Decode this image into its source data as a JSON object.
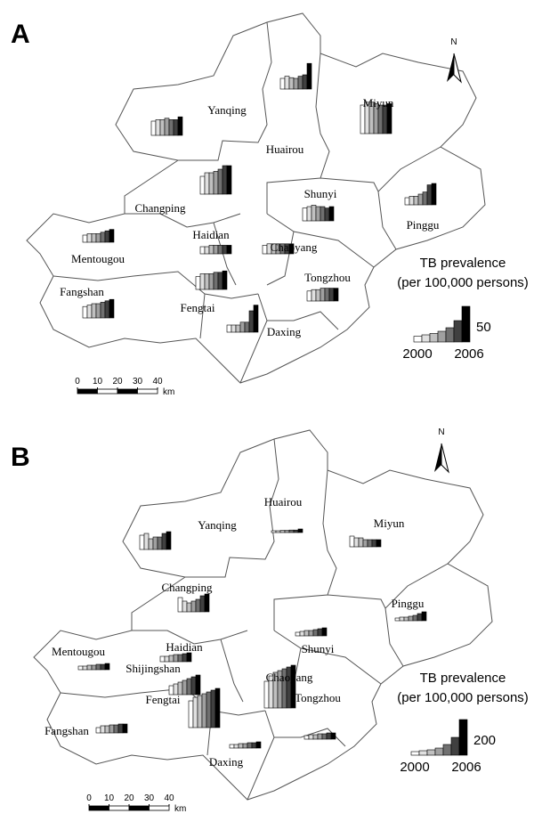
{
  "colors": [
    "#ffffff",
    "#e0e0e0",
    "#c0c0c0",
    "#a0a0a0",
    "#707070",
    "#404040",
    "#000000"
  ],
  "panels": [
    {
      "label": "A",
      "north": "N",
      "districts": [
        {
          "name": "Yanqing",
          "values": [
            20,
            22,
            22,
            24,
            22,
            22,
            26
          ]
        },
        {
          "name": "Huairou",
          "values": [
            15,
            18,
            16,
            15,
            18,
            20,
            36
          ]
        },
        {
          "name": "Miyun",
          "values": [
            40,
            44,
            44,
            42,
            40,
            40,
            42
          ]
        },
        {
          "name": "Changping",
          "values": [
            25,
            30,
            30,
            32,
            35,
            40,
            40
          ]
        },
        {
          "name": "Shunyi",
          "values": [
            18,
            20,
            22,
            20,
            20,
            18,
            20
          ]
        },
        {
          "name": "Pinggu",
          "values": [
            10,
            12,
            12,
            15,
            18,
            28,
            30
          ]
        },
        {
          "name": "Mentougou",
          "values": [
            10,
            12,
            12,
            12,
            14,
            16,
            18
          ]
        },
        {
          "name": "Haidian",
          "values": [
            10,
            10,
            12,
            12,
            12,
            12,
            12
          ]
        },
        {
          "name": "Chaoyang",
          "values": [
            12,
            14,
            14,
            14,
            14,
            14,
            14
          ]
        },
        {
          "name": "Tongzhou",
          "values": [
            14,
            16,
            16,
            18,
            18,
            18,
            18
          ]
        },
        {
          "name": "Fangshan",
          "values": [
            16,
            18,
            20,
            20,
            22,
            24,
            26
          ]
        },
        {
          "name": "Fengtai",
          "values": [
            18,
            22,
            22,
            22,
            24,
            24,
            26
          ]
        },
        {
          "name": "Daxing",
          "values": [
            10,
            10,
            10,
            14,
            14,
            30,
            38
          ]
        }
      ],
      "legend": {
        "title": "TB prevalence",
        "subtitle": "(per 100,000 persons)",
        "values": [
          8,
          10,
          12,
          15,
          20,
          30,
          50
        ],
        "max_label": 50,
        "start_year": 2000,
        "end_year": 2006
      },
      "scale": {
        "ticks": [
          0,
          10,
          20,
          30,
          40
        ],
        "unit": "km"
      }
    },
    {
      "label": "B",
      "north": "N",
      "districts": [
        {
          "name": "Yanqing",
          "values": [
            80,
            90,
            60,
            70,
            70,
            90,
            100
          ]
        },
        {
          "name": "Huairou",
          "values": [
            10,
            10,
            12,
            12,
            14,
            14,
            20
          ]
        },
        {
          "name": "Miyun",
          "values": [
            60,
            50,
            50,
            40,
            40,
            40,
            40
          ]
        },
        {
          "name": "Changping",
          "values": [
            80,
            60,
            50,
            60,
            70,
            90,
            100
          ]
        },
        {
          "name": "Shunyi",
          "values": [
            20,
            25,
            30,
            30,
            35,
            40,
            45
          ]
        },
        {
          "name": "Pinggu",
          "values": [
            15,
            20,
            20,
            25,
            30,
            40,
            50
          ]
        },
        {
          "name": "Mentougou",
          "values": [
            20,
            20,
            25,
            25,
            30,
            30,
            35
          ]
        },
        {
          "name": "Haidian",
          "values": [
            30,
            30,
            35,
            40,
            40,
            45,
            50
          ]
        },
        {
          "name": "Shijingshan",
          "values": [
            50,
            60,
            70,
            80,
            90,
            100,
            110
          ]
        },
        {
          "name": "Chaoyang",
          "values": [
            150,
            180,
            200,
            210,
            220,
            230,
            240
          ]
        },
        {
          "name": "Fengtai",
          "values": [
            150,
            170,
            180,
            190,
            200,
            210,
            220
          ]
        },
        {
          "name": "Tongzhou",
          "values": [
            20,
            25,
            25,
            30,
            30,
            35,
            35
          ]
        },
        {
          "name": "Fangshan",
          "values": [
            30,
            40,
            40,
            45,
            45,
            50,
            50
          ]
        },
        {
          "name": "Daxing",
          "values": [
            20,
            20,
            25,
            25,
            30,
            30,
            35
          ]
        }
      ],
      "legend": {
        "title": "TB prevalence",
        "subtitle": "(per 100,000 persons)",
        "values": [
          20,
          25,
          30,
          40,
          60,
          100,
          200
        ],
        "max_label": 200,
        "start_year": 2000,
        "end_year": 2006
      },
      "scale": {
        "ticks": [
          0,
          10,
          20,
          30,
          40
        ],
        "unit": "km"
      }
    }
  ]
}
